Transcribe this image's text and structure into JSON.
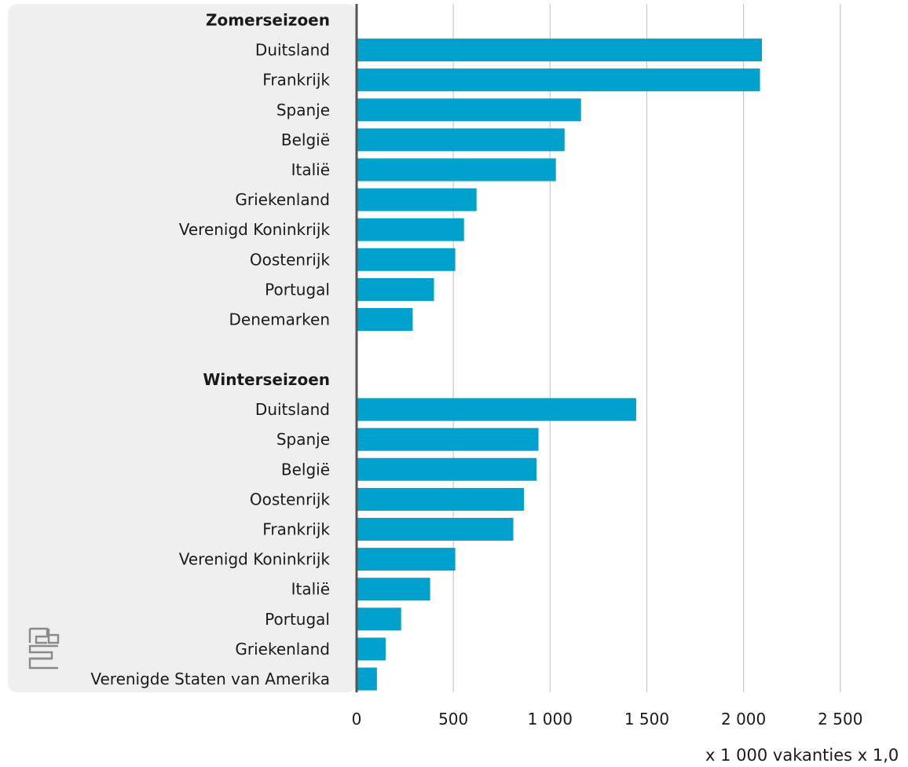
{
  "chart_data": {
    "type": "bar",
    "orientation": "horizontal",
    "groups": [
      {
        "label": "Zomerseizoen",
        "categories": [
          "Duitsland",
          "Frankrijk",
          "Spanje",
          "België",
          "Italië",
          "Griekenland",
          "Verenigd Koninkrijk",
          "Oostenrijk",
          "Portugal",
          "Denemarken"
        ],
        "values": [
          2095,
          2085,
          1160,
          1075,
          1030,
          620,
          555,
          510,
          400,
          290
        ]
      },
      {
        "label": "Winterseizoen",
        "categories": [
          "Duitsland",
          "Spanje",
          "België",
          "Oostenrijk",
          "Frankrijk",
          "Verenigd Koninkrijk",
          "Italië",
          "Portugal",
          "Griekenland",
          "Verenigde Staten van Amerika"
        ],
        "values": [
          1445,
          940,
          930,
          865,
          810,
          510,
          380,
          230,
          150,
          105
        ]
      }
    ],
    "xlim": [
      0,
      2850
    ],
    "xticks": [
      0,
      500,
      1000,
      1500,
      2000,
      2500
    ],
    "xtick_labels": [
      "0",
      "500",
      "1 000",
      "1 500",
      "2 000",
      "2 500"
    ],
    "xlabel": "x 1 000 vakanties x 1,0",
    "grid": true,
    "legend": "none",
    "bar_color": "#00A1CD",
    "grid_color": "#c8c8c8",
    "axis_color": "#555555",
    "panel_color": "#efefef"
  },
  "logo": {
    "icon": "cbs-logo-icon",
    "text": "cbs",
    "color": "#8a8a8a"
  }
}
